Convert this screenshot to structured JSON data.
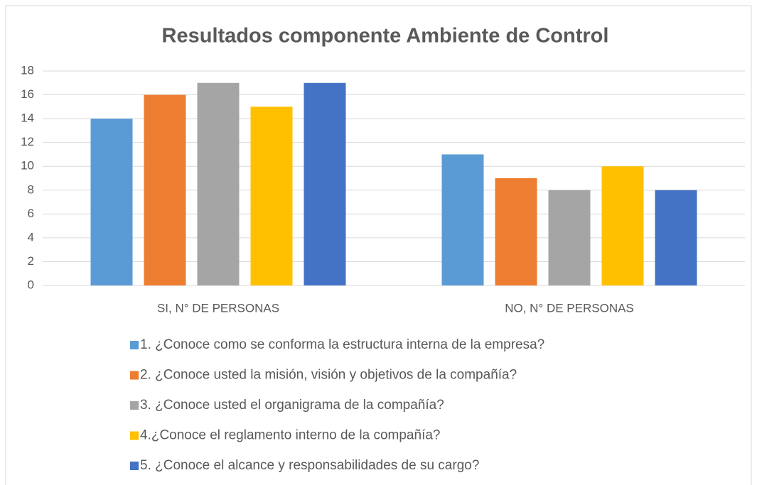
{
  "chart_data": {
    "type": "bar",
    "title": "Resultados componente Ambiente de Control",
    "categories": [
      "SI, N° DE PERSONAS",
      "NO, N° DE PERSONAS"
    ],
    "series": [
      {
        "name": "1. ¿Conoce como se conforma la estructura interna de la empresa?",
        "color": "#5b9bd5",
        "values": [
          14,
          11
        ]
      },
      {
        "name": "2. ¿Conoce usted la misión, visión y objetivos de la compañía?",
        "color": "#ed7d31",
        "values": [
          16,
          9
        ]
      },
      {
        "name": "3. ¿Conoce usted el organigrama de la compañía?",
        "color": "#a5a5a5",
        "values": [
          17,
          8
        ]
      },
      {
        "name": "4.¿Conoce el reglamento interno de la compañía?",
        "color": "#ffc000",
        "values": [
          15,
          10
        ]
      },
      {
        "name": "5. ¿Conoce el alcance y responsabilidades de su cargo?",
        "color": "#4472c4",
        "values": [
          17,
          8
        ]
      }
    ],
    "ylim": [
      0,
      18
    ],
    "yticks": [
      0,
      2,
      4,
      6,
      8,
      10,
      12,
      14,
      16,
      18
    ],
    "grid": true,
    "legend": "bottom"
  }
}
